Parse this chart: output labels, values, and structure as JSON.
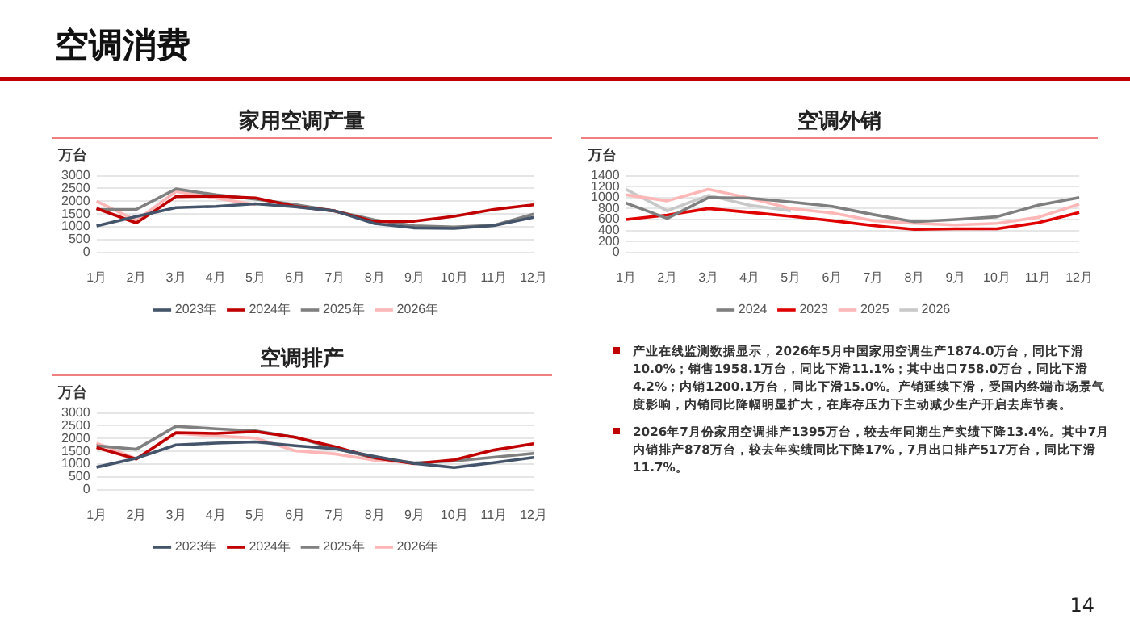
{
  "chart_data": [
    {
      "type": "line",
      "title": "家用空调产量",
      "ylabel": "万台",
      "categories": [
        "1月",
        "2月",
        "3月",
        "4月",
        "5月",
        "6月",
        "7月",
        "8月",
        "9月",
        "10月",
        "11月",
        "12月"
      ],
      "ylim": [
        0,
        3000
      ],
      "yticks": [
        0,
        500,
        1000,
        1500,
        2000,
        2500,
        3000
      ],
      "grid": "y",
      "legend": "bottom",
      "marker": "none",
      "series": [
        {
          "name": "2023年",
          "color": "#44546a",
          "values": [
            1030,
            1400,
            1750,
            1800,
            1900,
            1780,
            1620,
            1130,
            960,
            940,
            1050,
            1370
          ]
        },
        {
          "name": "2024年",
          "color": "#c00000",
          "values": [
            1720,
            1150,
            2180,
            2200,
            2130,
            1800,
            1620,
            1200,
            1220,
            1410,
            1680,
            1860
          ]
        },
        {
          "name": "2025年",
          "color": "#808080",
          "values": [
            1680,
            1680,
            2480,
            2250,
            2080,
            1870,
            1620,
            1270,
            1040,
            990,
            1060,
            1500
          ]
        },
        {
          "name": "2026年",
          "color": "#ffb6b6",
          "values": [
            2000,
            1250,
            2380,
            2120,
            1870,
            null,
            null,
            null,
            null,
            null,
            null,
            null
          ]
        }
      ]
    },
    {
      "type": "line",
      "title": "空调外销",
      "ylabel": "万台",
      "categories": [
        "1月",
        "2月",
        "3月",
        "4月",
        "5月",
        "6月",
        "7月",
        "8月",
        "9月",
        "10月",
        "11月",
        "12月"
      ],
      "ylim": [
        0,
        1400
      ],
      "yticks": [
        0,
        200,
        400,
        600,
        800,
        1000,
        1200,
        1400
      ],
      "grid": "y",
      "legend": "bottom",
      "marker": "none",
      "series": [
        {
          "name": "2024",
          "color": "#7f7f7f",
          "values": [
            900,
            620,
            1000,
            990,
            920,
            840,
            690,
            560,
            600,
            650,
            860,
            1000
          ]
        },
        {
          "name": "2023",
          "color": "#e00000",
          "values": [
            600,
            680,
            800,
            730,
            660,
            580,
            490,
            420,
            430,
            430,
            540,
            730
          ]
        },
        {
          "name": "2025",
          "color": "#ffb6b6",
          "values": [
            1050,
            940,
            1150,
            990,
            800,
            720,
            580,
            530,
            500,
            530,
            640,
            880
          ]
        },
        {
          "name": "2026",
          "color": "#c8c8c8",
          "values": [
            1150,
            760,
            1040,
            860,
            760,
            null,
            null,
            null,
            null,
            null,
            null,
            null
          ]
        }
      ]
    },
    {
      "type": "line",
      "title": "空调排产",
      "ylabel": "万台",
      "categories": [
        "1月",
        "2月",
        "3月",
        "4月",
        "5月",
        "6月",
        "7月",
        "8月",
        "9月",
        "10月",
        "11月",
        "12月"
      ],
      "ylim": [
        0,
        3000
      ],
      "yticks": [
        0,
        500,
        1000,
        1500,
        2000,
        2500,
        3000
      ],
      "grid": "y",
      "legend": "bottom",
      "marker": "none",
      "series": [
        {
          "name": "2023年",
          "color": "#44546a",
          "values": [
            880,
            1230,
            1750,
            1820,
            1870,
            1720,
            1600,
            1300,
            1030,
            870,
            1060,
            1260
          ]
        },
        {
          "name": "2024年",
          "color": "#c00000",
          "values": [
            1650,
            1200,
            2230,
            2200,
            2270,
            2050,
            1680,
            1250,
            1020,
            1170,
            1550,
            1800
          ]
        },
        {
          "name": "2025年",
          "color": "#808080",
          "values": [
            1720,
            1580,
            2480,
            2380,
            2300,
            2050,
            1620,
            1240,
            1050,
            1120,
            1270,
            1420
          ]
        },
        {
          "name": "2026年",
          "color": "#ffb6b6",
          "values": [
            1820,
            1220,
            2200,
            2100,
            2020,
            1520,
            1400,
            1150,
            1040,
            null,
            null,
            null
          ]
        }
      ]
    },
    {
      "type": "other",
      "title": "空调消费",
      "annotations": [
        "产业在线监测数据显示，2026年5月中国家用空调生产1874.0万台，同比下滑10.0%；销售1958.1万台，同比下滑11.1%；其中出口758.0万台，同比下滑4.2%；内销1200.1万台，同比下滑15.0%。产销延续下滑，受国内终端市场景气度影响，内销同比降幅明显扩大，在库存压力下主动减少生产开启去库节奏。",
        "2026年7月份家用空调排产1395万台，较去年同期生产实绩下降13.4%。其中7月内销排产878万台，较去年实绩同比下降17%，7月出口排产517万台，同比下滑11.7%。",
        "14"
      ]
    }
  ]
}
